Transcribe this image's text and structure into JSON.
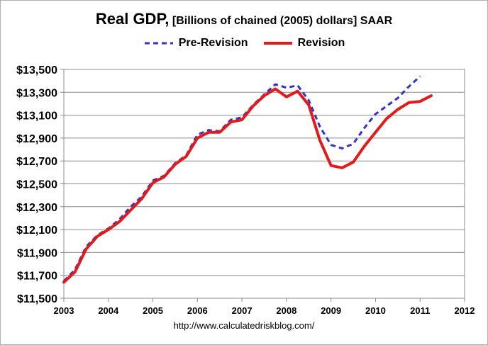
{
  "chart_data": {
    "type": "line",
    "title": "Real GDP,",
    "subtitle": "[Billions of chained (2005) dollars] SAAR",
    "source": "http://www.calculatedriskblog.com/",
    "x_ticks": [
      "2003",
      "2004",
      "2005",
      "2006",
      "2007",
      "2008",
      "2009",
      "2010",
      "2011",
      "2012"
    ],
    "y_ticks": [
      "$11,500",
      "$11,700",
      "$11,900",
      "$12,100",
      "$12,300",
      "$12,500",
      "$12,700",
      "$12,900",
      "$13,100",
      "$13,300",
      "$13,500"
    ],
    "xlim": [
      2003,
      2012
    ],
    "ylim": [
      11500,
      13500
    ],
    "grid": true,
    "legend_position": "top-center",
    "series": [
      {
        "name": "Pre-Revision",
        "color": "#3333cc",
        "style": "dashed",
        "x": [
          2003.0,
          2003.25,
          2003.5,
          2003.75,
          2004.0,
          2004.25,
          2004.5,
          2004.75,
          2005.0,
          2005.25,
          2005.5,
          2005.75,
          2006.0,
          2006.25,
          2006.5,
          2006.75,
          2007.0,
          2007.25,
          2007.5,
          2007.75,
          2008.0,
          2008.25,
          2008.5,
          2008.75,
          2009.0,
          2009.25,
          2009.5,
          2009.75,
          2010.0,
          2010.25,
          2010.5,
          2010.75,
          2011.0
        ],
        "values": [
          11650,
          11750,
          11950,
          12050,
          12110,
          12190,
          12300,
          12390,
          12530,
          12570,
          12680,
          12750,
          12930,
          12970,
          12960,
          13060,
          13080,
          13190,
          13280,
          13370,
          13340,
          13360,
          13230,
          13000,
          12840,
          12810,
          12850,
          12990,
          13110,
          13180,
          13250,
          13350,
          13440
        ]
      },
      {
        "name": "Revision",
        "color": "#e21a1a",
        "style": "solid",
        "x": [
          2003.0,
          2003.25,
          2003.5,
          2003.75,
          2004.0,
          2004.25,
          2004.5,
          2004.75,
          2005.0,
          2005.25,
          2005.5,
          2005.75,
          2006.0,
          2006.25,
          2006.5,
          2006.75,
          2007.0,
          2007.25,
          2007.5,
          2007.75,
          2008.0,
          2008.25,
          2008.5,
          2008.75,
          2009.0,
          2009.25,
          2009.5,
          2009.75,
          2010.0,
          2010.25,
          2010.5,
          2010.75,
          2011.0,
          2011.25
        ],
        "values": [
          11640,
          11730,
          11930,
          12040,
          12100,
          12170,
          12270,
          12370,
          12510,
          12560,
          12670,
          12740,
          12900,
          12950,
          12950,
          13040,
          13060,
          13180,
          13270,
          13330,
          13260,
          13310,
          13190,
          12880,
          12660,
          12640,
          12690,
          12830,
          12950,
          13070,
          13150,
          13210,
          13220,
          13270
        ]
      }
    ]
  }
}
